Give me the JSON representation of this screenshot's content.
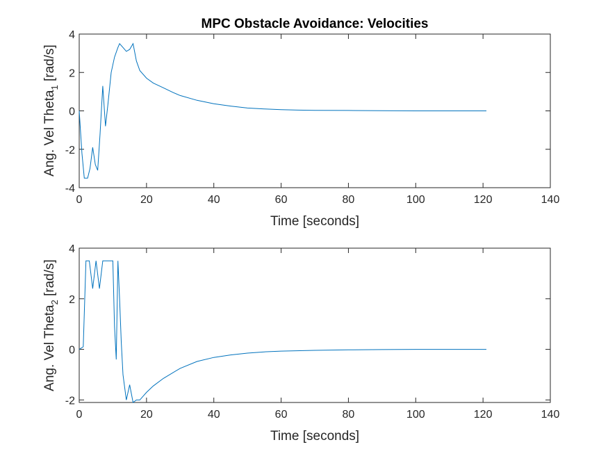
{
  "colors": {
    "series": "#0072BD",
    "axes": "#262626"
  },
  "chart_data": [
    {
      "type": "line",
      "title": "MPC Obstacle Avoidance: Velocities",
      "xlabel": "Time [seconds]",
      "ylabel_main": "Ang. Vel Theta",
      "ylabel_sub": "1",
      "ylabel_tail": " [rad/s]",
      "xlim": [
        0,
        140
      ],
      "ylim": [
        -4,
        4
      ],
      "xticks": [
        0,
        20,
        40,
        60,
        80,
        100,
        120,
        140
      ],
      "yticks": [
        -4,
        -2,
        0,
        2,
        4
      ],
      "grid": false,
      "series": [
        {
          "x": [
            0,
            0.8,
            1.5,
            2.5,
            3.2,
            4.0,
            4.8,
            5.5,
            6.2,
            7.0,
            7.8,
            8.5,
            9.5,
            10.5,
            11.5,
            12.0,
            13.0,
            14.0,
            15.0,
            16.0,
            17.0,
            18.0,
            20.0,
            22.0,
            25.0,
            28.0,
            30.0,
            35.0,
            40.0,
            45.0,
            50.0,
            55.0,
            60.0,
            65.0,
            70.0,
            80.0,
            90.0,
            100.0,
            110.0,
            121.0
          ],
          "y": [
            0,
            -2.2,
            -3.5,
            -3.5,
            -3.0,
            -1.9,
            -2.8,
            -3.1,
            -1.2,
            1.3,
            -0.8,
            0.3,
            2.0,
            2.8,
            3.3,
            3.5,
            3.3,
            3.1,
            3.2,
            3.5,
            2.6,
            2.1,
            1.7,
            1.45,
            1.2,
            0.95,
            0.8,
            0.55,
            0.37,
            0.25,
            0.15,
            0.1,
            0.06,
            0.04,
            0.03,
            0.02,
            0.01,
            0.0,
            0.0,
            0.0
          ]
        }
      ]
    },
    {
      "type": "line",
      "title": "",
      "xlabel": "Time [seconds]",
      "ylabel_main": "Ang. Vel Theta",
      "ylabel_sub": "2",
      "ylabel_tail": " [rad/s]",
      "xlim": [
        0,
        140
      ],
      "ylim": [
        -2.1,
        4
      ],
      "xticks": [
        0,
        20,
        40,
        60,
        80,
        100,
        120,
        140
      ],
      "yticks": [
        -2,
        0,
        2,
        4
      ],
      "grid": false,
      "series": [
        {
          "x": [
            0,
            1.2,
            2.0,
            3.0,
            4.0,
            5.0,
            6.0,
            7.0,
            8.0,
            9.0,
            10.0,
            10.5,
            11.0,
            11.5,
            12.0,
            12.5,
            13.0,
            14.0,
            15.0,
            16.0,
            17.0,
            18.0,
            19.0,
            20.0,
            22.0,
            25.0,
            30.0,
            35.0,
            40.0,
            45.0,
            50.0,
            55.0,
            60.0,
            70.0,
            80.0,
            90.0,
            100.0,
            110.0,
            121.0
          ],
          "y": [
            0,
            0.1,
            3.5,
            3.5,
            2.4,
            3.5,
            2.4,
            3.5,
            3.5,
            3.5,
            3.5,
            0.9,
            -0.4,
            3.5,
            2.0,
            0.3,
            -1.0,
            -2.0,
            -1.4,
            -2.1,
            -2.0,
            -2.0,
            -1.85,
            -1.7,
            -1.45,
            -1.15,
            -0.75,
            -0.48,
            -0.32,
            -0.22,
            -0.15,
            -0.1,
            -0.07,
            -0.04,
            -0.02,
            -0.01,
            0.0,
            0.0,
            0.0
          ]
        }
      ]
    }
  ]
}
